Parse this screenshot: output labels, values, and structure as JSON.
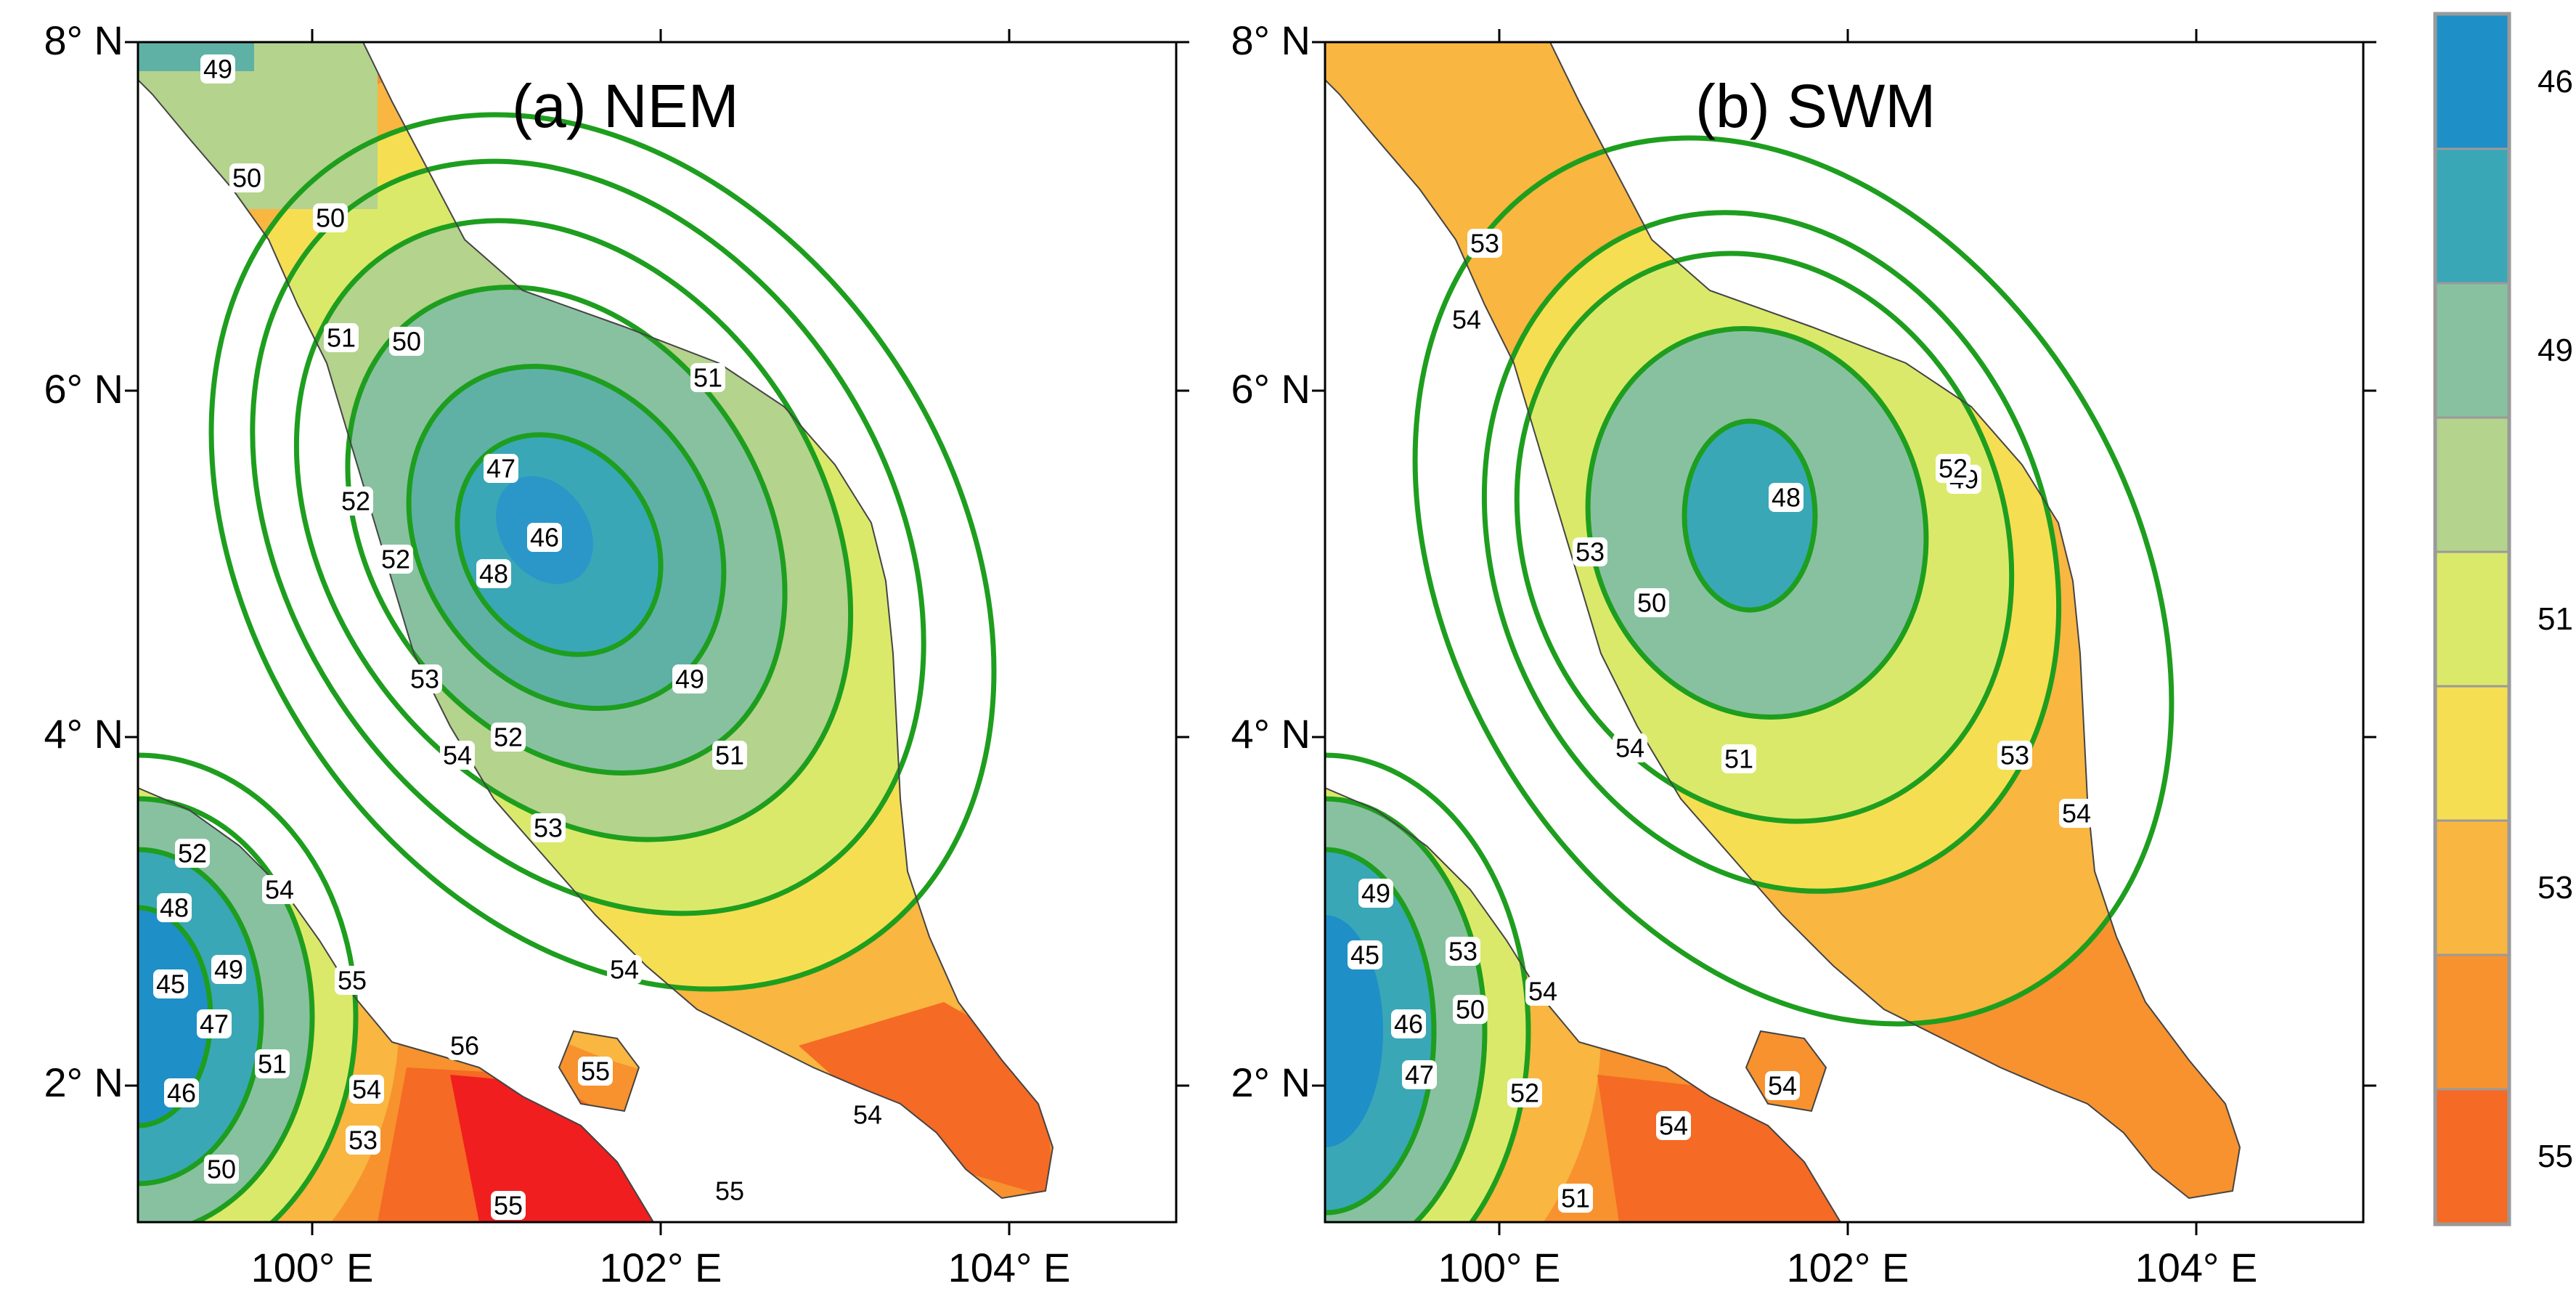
{
  "colors": {
    "sea": "#ffffff",
    "contour_line": "#1e9e1e",
    "boundary_line": "#222222",
    "levels": {
      "45": "#1f8fc7",
      "46": "#2a97c8",
      "47": "#3aa7b7",
      "48": "#5fb1a6",
      "49": "#88c1a0",
      "50": "#b4d38c",
      "51": "#dbe96a",
      "52": "#f6de53",
      "53": "#f9b640",
      "54": "#f7922f",
      "55": "#f56a24",
      "56": "#f01e1e"
    }
  },
  "colorbar": {
    "levels": [
      "46",
      "",
      "49",
      "",
      "51",
      "",
      "53",
      "",
      "55"
    ],
    "level_colors": [
      "#1f8fc7",
      "#3aa7b7",
      "#88c1a0",
      "#b4d38c",
      "#dbe96a",
      "#f6de53",
      "#f9b640",
      "#f7922f",
      "#f56a24"
    ]
  },
  "panels": [
    {
      "title": "(a) NEM",
      "y_ticks": [
        "8° N",
        "6° N",
        "4° N",
        "2° N"
      ],
      "x_ticks": [
        "100° E",
        "102° E",
        "104° E"
      ],
      "contour_labels": [
        "49",
        "50",
        "50",
        "51",
        "50",
        "51",
        "47",
        "46",
        "48",
        "52",
        "52",
        "49",
        "51",
        "53",
        "52",
        "54",
        "53",
        "54",
        "54",
        "52",
        "48",
        "54",
        "45",
        "49",
        "47",
        "46",
        "51",
        "55",
        "54",
        "53",
        "50",
        "56",
        "55",
        "55",
        "55"
      ]
    },
    {
      "title": "(b) SWM",
      "y_ticks": [
        "8° N",
        "6° N",
        "4° N",
        "2° N"
      ],
      "x_ticks": [
        "100° E",
        "102° E",
        "104° E"
      ],
      "contour_labels": [
        "53",
        "54",
        "49",
        "48",
        "52",
        "53",
        "50",
        "54",
        "51",
        "53",
        "54",
        "49",
        "45",
        "53",
        "54",
        "46",
        "50",
        "47",
        "52",
        "54",
        "54",
        "51"
      ]
    }
  ]
}
